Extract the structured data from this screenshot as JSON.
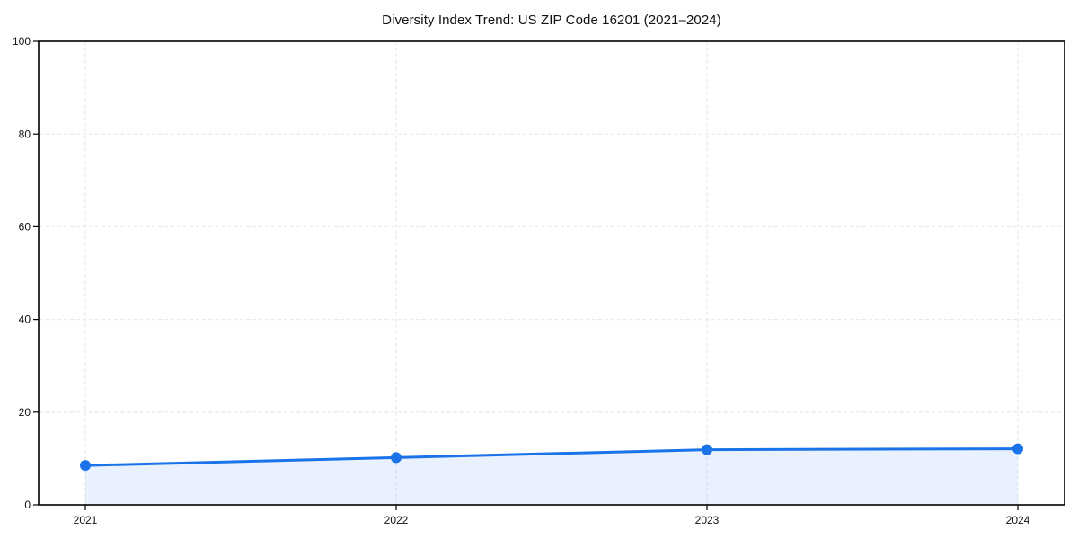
{
  "chart_data": {
    "type": "area",
    "title": "Diversity Index Trend: US ZIP Code 16201 (2021–2024)",
    "categories": [
      "2021",
      "2022",
      "2023",
      "2024"
    ],
    "series": [
      {
        "name": "Diversity Index",
        "values": [
          8.5,
          10.2,
          11.9,
          12.1
        ]
      }
    ],
    "xlabel": "",
    "ylabel": "",
    "ylim": [
      0,
      100
    ],
    "yticks": [
      0,
      20,
      40,
      60,
      80,
      100
    ],
    "grid": "dashed-both-axes",
    "legend": "none",
    "colors": {
      "line": "#1a73e8",
      "marker": "#1a73e8",
      "fill": "#1a73e8",
      "fill_opacity": 0.1,
      "grid": "#e6e6e6",
      "axis": "#000000",
      "text": "#111111"
    },
    "marker_style": "circle",
    "line_width": 3,
    "marker_radius": 6
  }
}
